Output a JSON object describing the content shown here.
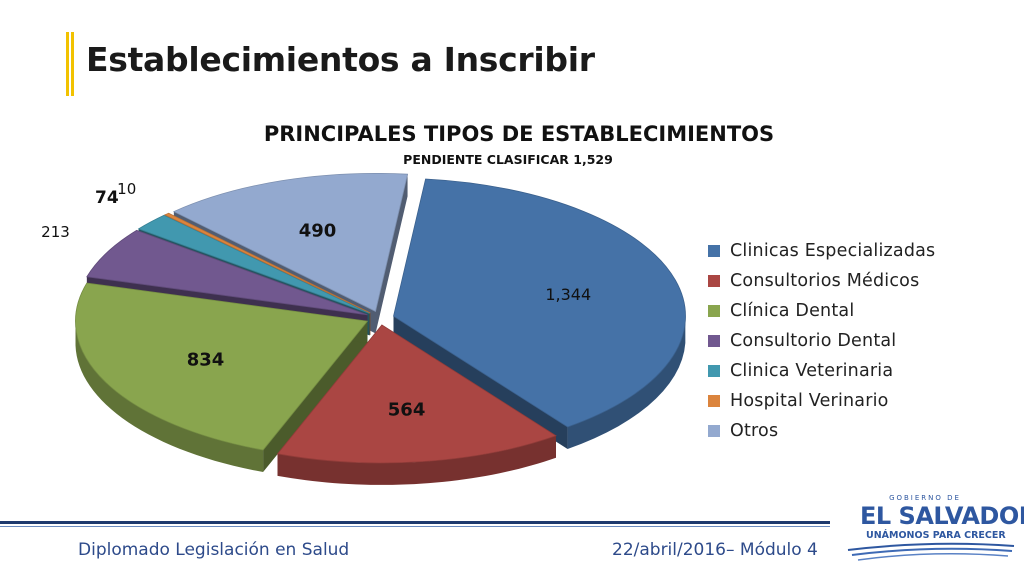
{
  "slide": {
    "title": "Establecimientos a Inscribir"
  },
  "chart_data": {
    "type": "pie",
    "title": "PRINCIPALES TIPOS DE ESTABLECIMIENTOS",
    "subtitle": "PENDIENTE CLASIFICAR 1,529",
    "categories": [
      "Clinicas Especializadas",
      "Consultorios Médicos",
      "Clínica Dental",
      "Consultorio Dental",
      "Clinica Veterinaria",
      "Hospital Verinario",
      "Otros"
    ],
    "values": [
      1344,
      564,
      834,
      213,
      74,
      10,
      490
    ],
    "value_labels": [
      "1,344",
      "564",
      "834",
      "213",
      "74",
      "10",
      "490"
    ],
    "colors": [
      "#4572a7",
      "#aa4643",
      "#89a54e",
      "#71588f",
      "#4198af",
      "#db843d",
      "#93a9cf"
    ],
    "legend_position": "right",
    "exploded": true,
    "three_d": true
  },
  "footer": {
    "left": "Diplomado Legislación en Salud",
    "right": "22/abril/2016– Módulo 4"
  },
  "logo": {
    "small_text": "GOBIERNO DE",
    "main_text": "EL SALVADOR",
    "tagline": "UNÁMONOS PARA CRECER"
  }
}
